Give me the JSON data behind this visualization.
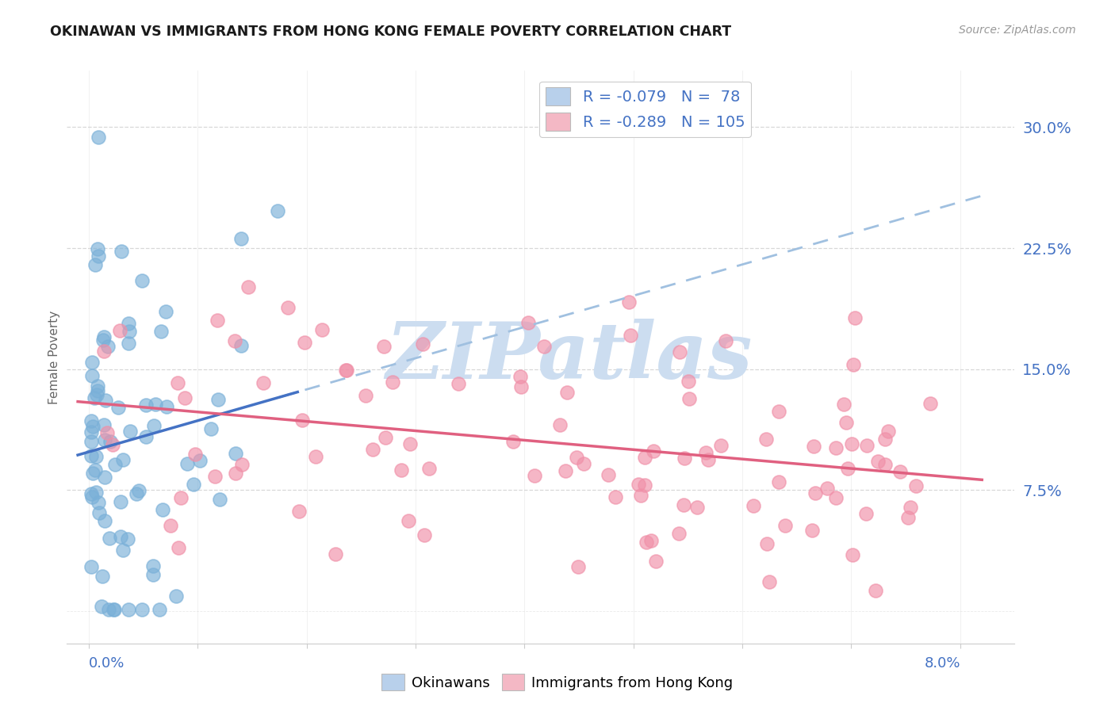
{
  "title": "OKINAWAN VS IMMIGRANTS FROM HONG KONG FEMALE POVERTY CORRELATION CHART",
  "source": "Source: ZipAtlas.com",
  "ylabel": "Female Poverty",
  "y_ticks": [
    0.075,
    0.15,
    0.225,
    0.3
  ],
  "y_tick_labels": [
    "7.5%",
    "15.0%",
    "22.5%",
    "30.0%"
  ],
  "xlim": [
    -0.002,
    0.085
  ],
  "ylim": [
    -0.02,
    0.335
  ],
  "legend1_label": "R = -0.079   N =  78",
  "legend2_label": "R = -0.289   N = 105",
  "legend_color1": "#b8d0eb",
  "legend_color2": "#f4b8c5",
  "scatter_color1": "#7ab0d8",
  "scatter_color2": "#f090a8",
  "line_color1": "#4472c4",
  "line_color2": "#e06080",
  "dashed_color": "#a0c0e0",
  "grid_color": "#d8d8d8",
  "spine_color": "#cccccc",
  "watermark": "ZIPatlas",
  "watermark_color": "#ccddf0",
  "label_color": "#4472c4",
  "title_color": "#1a1a1a",
  "source_color": "#999999",
  "ylabel_color": "#666666",
  "R1": -0.079,
  "N1": 78,
  "R2": -0.289,
  "N2": 105,
  "seed": 42
}
